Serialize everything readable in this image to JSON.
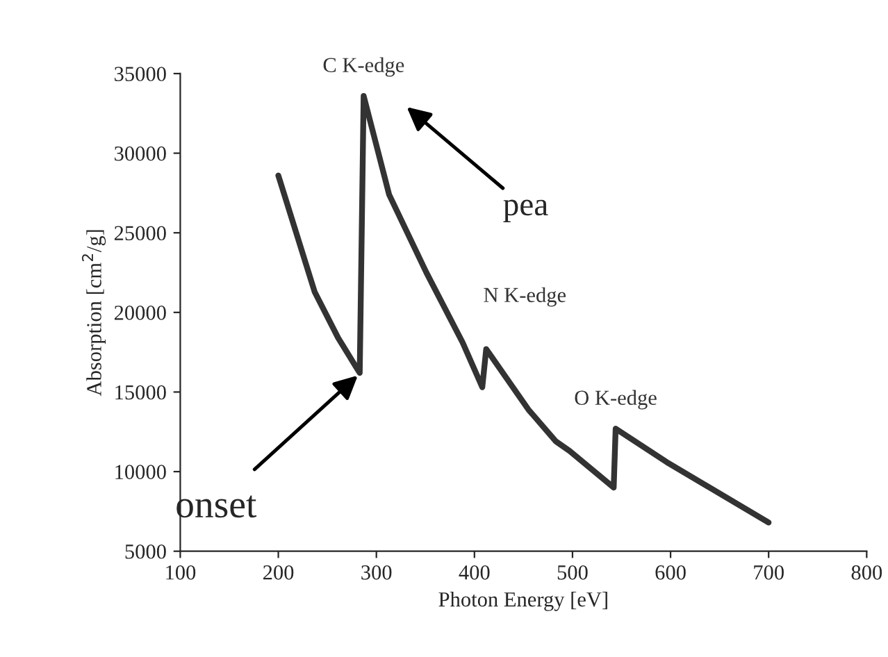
{
  "chart_data": {
    "type": "line",
    "xlabel": "Photon Energy [eV]",
    "ylabel": "Absorption [cm$^{2}$/g]",
    "x": [
      200,
      237,
      261,
      283,
      285,
      287,
      313,
      351,
      388,
      408,
      412,
      455,
      483,
      497,
      542,
      544,
      596,
      700
    ],
    "series": [
      {
        "color": "#333333",
        "values": [
          28600,
          21300,
          18400,
          16200,
          24800,
          33600,
          27400,
          22500,
          18100,
          15300,
          17700,
          13900,
          11900,
          11300,
          9000,
          12700,
          10600,
          6800
        ]
      }
    ],
    "xlim": [
      100,
      800
    ],
    "xticks": [
      100,
      200,
      300,
      400,
      500,
      600,
      700,
      800
    ],
    "ylim": [
      5000,
      35000
    ],
    "yticks": [
      5000,
      10000,
      15000,
      20000,
      25000,
      30000,
      35000
    ],
    "grid": false,
    "marker": "none",
    "line_style": "solid",
    "annotations": [
      {
        "text": "C K-edge",
        "x": 287,
        "y": 33600
      },
      "pea",
      {
        "text": "N K-edge",
        "x": 412,
        "y": 17700
      },
      {
        "text": "O K-edge",
        "x": 544,
        "y": 12700
      },
      {
        "text": "onset",
        "x": 284,
        "y": 16200
      }
    ]
  }
}
